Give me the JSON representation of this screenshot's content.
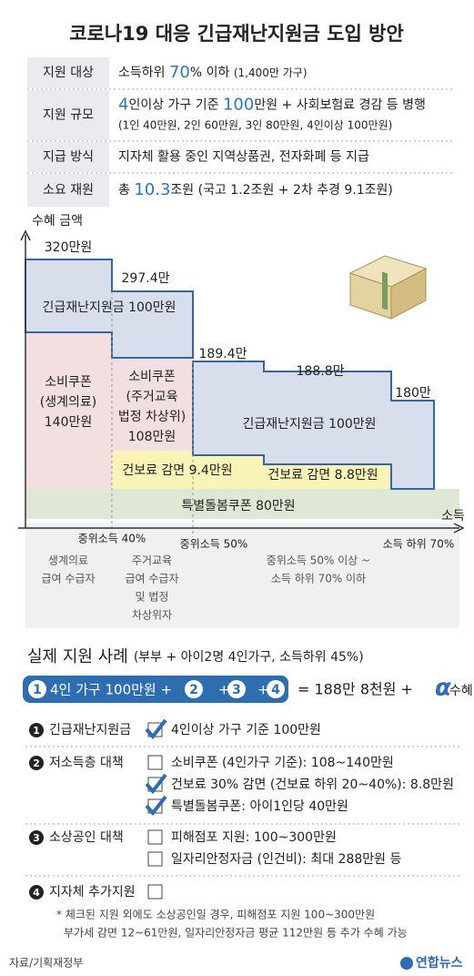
{
  "title": "코로나19 대응 긴급재난지원금 도입 방안",
  "summary_table": {
    "rows": [
      {
        "label": "지원 대상",
        "lines": [
          [
            {
              "text": "소득하위 "
            },
            {
              "text": "70",
              "style": "accent"
            },
            {
              "text": "% 이하 "
            },
            {
              "text": "(1,400만 가구)",
              "style": "small"
            }
          ]
        ]
      },
      {
        "label": "지원 규모",
        "lines": [
          [
            {
              "text": "4",
              "style": "accent"
            },
            {
              "text": "인이상 가구 기준 "
            },
            {
              "text": "100",
              "style": "accent"
            },
            {
              "text": "만원 + 사회보험료 경감 등 병행"
            }
          ],
          [
            {
              "text": "(1인 40만원, 2인 60만원, 3인 80만원, 4인이상 100만원)",
              "style": "small"
            }
          ]
        ]
      },
      {
        "label": "지급 방식",
        "lines": [
          [
            {
              "text": "지자체 활용 중인 지역상품권, 전자화폐 등 지급"
            }
          ]
        ]
      },
      {
        "label": "소요 재원",
        "lines": [
          [
            {
              "text": "총 "
            },
            {
              "text": "10.3",
              "style": "accent"
            },
            {
              "text": "조원 (국고 1.2조원 + 2차 추경 9.1조원)"
            }
          ]
        ]
      }
    ]
  },
  "chart": {
    "y_axis_label": "수혜 금액",
    "x_axis_label": "소득",
    "totals": [
      "320만원",
      "297.4만",
      "189.4만",
      "188.8만",
      "180만"
    ],
    "blocks": {
      "emergency_left": [
        "긴급재난지원금 100만원"
      ],
      "coupon_basic": [
        "소비쿠폰",
        "(생계의료)",
        "140만원"
      ],
      "coupon_housing": [
        "소비쿠폰",
        "(주거교육",
        "법정 차상위)",
        "108만원"
      ],
      "emergency_right": [
        "긴급재난지원금 100만원"
      ],
      "insurance_a": [
        "건보료 감면 9.4만원"
      ],
      "insurance_b": [
        "건보료 감면 8.8만원"
      ],
      "care_coupon": [
        "특별돌봄쿠폰 80만원"
      ]
    },
    "x_ticks": [
      "중위소득 40%",
      "중위소득 50%",
      "소득 하위 70%"
    ],
    "groups": [
      [
        "생계의료",
        "급여 수급자"
      ],
      [
        "주거교육",
        "급여 수급자",
        "및 법정",
        "차상위자"
      ],
      [
        "중위소득 50% 이상 ~",
        "소득 하위 70% 이하"
      ]
    ]
  },
  "case": {
    "title": "실제 지원 사례",
    "subtitle": "(부부 + 아이2명 4인가구, 소득하위 45%)",
    "formula": [
      "1",
      "4인 가구 100만원 +",
      "2",
      "+",
      "3",
      "+",
      "4"
    ],
    "result": "= 188만 8천원 +",
    "alpha": "α",
    "alpha_suffix": "수혜"
  },
  "measures": [
    {
      "num": "1",
      "title": "긴급재난지원금",
      "items": [
        {
          "text": "4인이상 가구 기준 100만원",
          "checked": true
        }
      ]
    },
    {
      "num": "2",
      "title": "저소득층 대책",
      "items": [
        {
          "text": "소비쿠폰 (4인가구 기준): 108~140만원",
          "checked": false
        },
        {
          "text": "건보료 30% 감면 (건보료 하위 20~40%): 8.8만원",
          "checked": true
        },
        {
          "text": "특별돌봄쿠폰: 아이1인당 40만원",
          "checked": true
        }
      ]
    },
    {
      "num": "3",
      "title": "소상공인 대책",
      "items": [
        {
          "text": "피해점포 지원: 100~300만원",
          "checked": false
        },
        {
          "text": "일자리안정자금 (인건비): 최대 288만원 등",
          "checked": false
        }
      ]
    },
    {
      "num": "4",
      "title": "지자체 추가지원",
      "items": [
        {
          "checked": false
        }
      ]
    }
  ],
  "notes": [
    "* 체크된 지원 외에도 소상공인일 경우, 피해점포 지원 100~300만원",
    "부가세 감면 12~61만원, 일자리안정자금 평균 112만원 등 추가 수혜 가능"
  ],
  "source": "자료/기획재정부",
  "logo": "연합뉴스"
}
